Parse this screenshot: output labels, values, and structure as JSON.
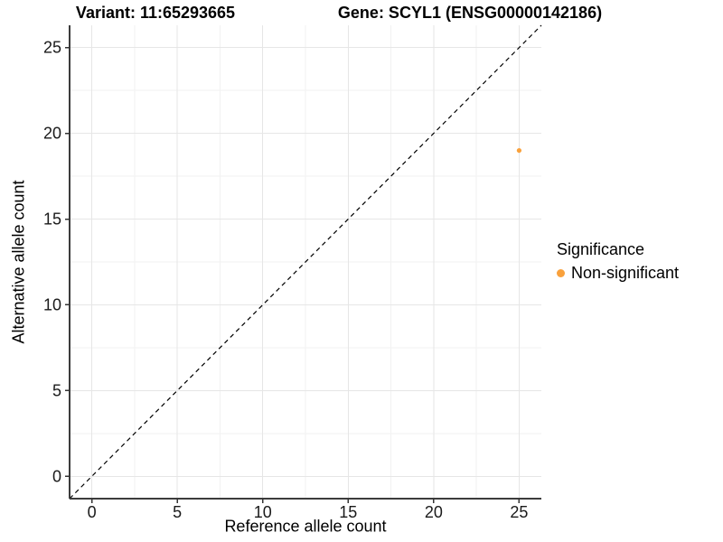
{
  "titles": {
    "variant": "Variant: 11:65293665",
    "gene": "Gene: SCYL1 (ENSG00000142186)"
  },
  "legend": {
    "title": "Significance",
    "items": [
      {
        "label": "Non-significant",
        "color": "#F9A13C"
      }
    ]
  },
  "chart_data": {
    "type": "scatter",
    "xlabel": "Reference allele count",
    "ylabel": "Alternative allele count",
    "xlim": [
      -1.3,
      26.3
    ],
    "ylim": [
      -1.3,
      26.3
    ],
    "x_ticks": [
      0,
      5,
      10,
      15,
      20,
      25
    ],
    "y_ticks": [
      0,
      5,
      10,
      15,
      20,
      25
    ],
    "x_minor_ticks": [
      2.5,
      7.5,
      12.5,
      17.5,
      22.5
    ],
    "y_minor_ticks": [
      2.5,
      7.5,
      12.5,
      17.5,
      22.5
    ],
    "grid": true,
    "legend_position": "right",
    "reference_line": {
      "type": "identity",
      "style": "dashed",
      "color": "#000000"
    },
    "series": [
      {
        "name": "Non-significant",
        "color": "#F9A13C",
        "points": [
          {
            "x": 25,
            "y": 19
          }
        ]
      }
    ]
  },
  "colors": {
    "background": "#FFFFFF",
    "grid_major": "#E6E6E6",
    "grid_minor": "#F2F2F2",
    "axis_line": "#3C3C3C",
    "tick_mark": "#333333",
    "tick_label": "#1A1A1A"
  }
}
